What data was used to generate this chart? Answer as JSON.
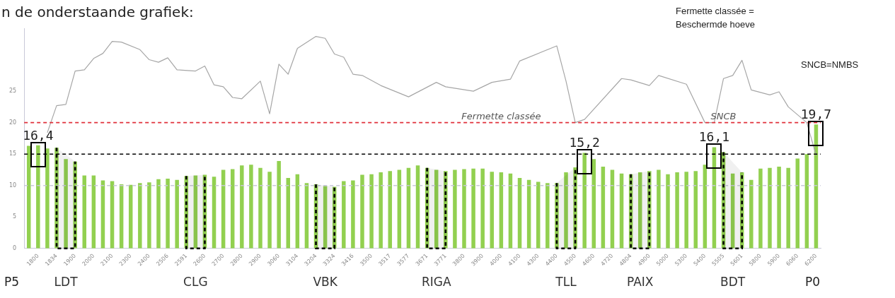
{
  "chart_data": {
    "type": "bar",
    "categories": [
      null,
      "1800",
      null,
      "1834",
      null,
      "1900",
      null,
      "2000",
      null,
      "2100",
      null,
      "2300",
      null,
      "2400",
      null,
      "2506",
      null,
      "2591",
      null,
      "2600",
      null,
      "2700",
      null,
      "2800",
      null,
      "2900",
      null,
      "3060",
      null,
      "3104",
      null,
      "3204",
      null,
      "3324",
      null,
      "3416",
      null,
      "3500",
      null,
      "3517",
      null,
      "3577",
      null,
      "3671",
      null,
      "3771",
      null,
      "3800",
      null,
      "3900",
      null,
      "4000",
      null,
      "4100",
      null,
      "4300",
      null,
      "4400",
      null,
      "4500",
      null,
      "4600",
      null,
      "4720",
      null,
      "4804",
      null,
      "4900",
      null,
      "5000",
      null,
      "5300",
      null,
      "5400",
      null,
      "5505",
      null,
      "5601",
      null,
      "5800",
      null,
      "5900",
      null,
      "6060",
      null,
      "6200"
    ],
    "series": [
      {
        "color": "#92d050",
        "values": [
          16.3,
          16.4,
          15.9,
          16.0,
          14.2,
          13.8,
          11.6,
          11.6,
          10.8,
          10.7,
          10.2,
          10.1,
          10.4,
          10.5,
          11.0,
          11.1,
          10.9,
          11.5,
          11.6,
          11.7,
          11.4,
          12.5,
          12.6,
          13.2,
          13.3,
          12.8,
          12.2,
          13.9,
          11.2,
          11.8,
          10.4,
          10.2,
          9.9,
          9.8,
          10.7,
          10.8,
          11.7,
          11.8,
          12.1,
          12.3,
          12.5,
          12.8,
          13.2,
          12.8,
          12.5,
          12.3,
          12.5,
          12.6,
          12.7,
          12.7,
          12.2,
          12.1,
          11.9,
          11.2,
          10.9,
          10.6,
          10.4,
          10.4,
          12.1,
          12.9,
          15.2,
          14.2,
          13.0,
          12.5,
          11.9,
          11.8,
          12.1,
          12.3,
          12.5,
          11.8,
          12.1,
          12.2,
          12.3,
          13.3,
          16.1,
          15.3,
          11.9,
          12.1,
          10.9,
          12.7,
          12.8,
          13.0,
          12.8,
          14.3,
          15.0,
          19.7
        ],
        "value_labels": [
          null,
          "16,4",
          null,
          null,
          null,
          null,
          null,
          null,
          null,
          null,
          null,
          null,
          null,
          null,
          null,
          null,
          null,
          null,
          null,
          null,
          null,
          null,
          null,
          null,
          null,
          null,
          null,
          null,
          null,
          null,
          null,
          null,
          null,
          null,
          null,
          null,
          null,
          null,
          null,
          null,
          null,
          null,
          null,
          null,
          null,
          null,
          null,
          null,
          null,
          null,
          null,
          null,
          null,
          null,
          null,
          null,
          null,
          null,
          null,
          null,
          "15,2",
          null,
          null,
          null,
          null,
          null,
          null,
          null,
          null,
          null,
          null,
          null,
          null,
          null,
          "16,1",
          null,
          null,
          null,
          null,
          null,
          null,
          null,
          null,
          null,
          null,
          "19,7"
        ]
      },
      {
        "type": "line",
        "color": "#a6a6a6",
        "values": [
          null,
          null,
          18.4,
          22.7,
          22.9,
          28.2,
          28.4,
          30.2,
          31.0,
          32.9,
          32.8,
          null,
          31.6,
          30.0,
          29.6,
          30.3,
          28.4,
          null,
          28.2,
          29.0,
          26.0,
          25.7,
          24.0,
          23.8,
          null,
          26.6,
          21.4,
          29.3,
          27.7,
          31.8,
          null,
          33.7,
          33.4,
          30.9,
          30.4,
          27.7,
          27.5,
          null,
          25.9,
          null,
          null,
          24.1,
          null,
          null,
          26.4,
          25.7,
          null,
          null,
          25.0,
          null,
          26.4,
          null,
          26.9,
          29.8,
          null,
          null,
          null,
          32.2,
          26.6,
          20.0,
          20.5,
          null,
          null,
          null,
          27.0,
          26.8,
          null,
          25.9,
          27.5,
          null,
          null,
          26.1,
          null,
          20.0,
          20.0,
          27.0,
          27.5,
          29.9,
          25.2,
          null,
          24.4,
          24.9,
          22.5,
          null,
          20.0,
          14.8
        ]
      }
    ],
    "ylim": [
      0,
      35
    ],
    "yticks": [
      0,
      5,
      10,
      15,
      20,
      25
    ],
    "grid": false,
    "legend": false,
    "marker": "none",
    "ref_lines": [
      {
        "axis": "y",
        "value": 10,
        "color": "#c8c8d8",
        "line_style": "dashed"
      },
      {
        "axis": "y",
        "value": 15,
        "color": "#000000",
        "line_style": "dashed"
      },
      {
        "axis": "y",
        "value": 20,
        "color": "#e0303a",
        "line_style": "dashed"
      }
    ],
    "bands": [
      {
        "axis": "x",
        "from": "1834",
        "to": "1900",
        "label": "LDT",
        "color": "#000000"
      },
      {
        "axis": "x",
        "from": "2591",
        "to": "2600",
        "label": "CLG",
        "color": "#000000"
      },
      {
        "axis": "x",
        "from": "3204",
        "to": "3324",
        "label": "VBK",
        "color": "#000000"
      },
      {
        "axis": "x",
        "from": "3671",
        "to": "3771",
        "label": "RIGA",
        "color": "#000000"
      },
      {
        "axis": "x",
        "from": "4400",
        "to": "4500",
        "label": "TLL",
        "color": "#000000"
      },
      {
        "axis": "x",
        "from": "4804",
        "to": "4900",
        "label": "PAIX",
        "color": "#000000"
      },
      {
        "axis": "x",
        "from": "5505",
        "to": "5601",
        "label": "BDT",
        "color": "#000000"
      }
    ],
    "annotations": [
      "n de onderstaande grafiek:",
      "Fermette classée = Beschermde hoeve",
      "SNCB=NMBS",
      "P5",
      "P0",
      {
        "text": "Fermette classée",
        "x": "4000",
        "y": 20
      },
      {
        "text": "SNCB",
        "x": "5505",
        "y": 20
      }
    ]
  }
}
